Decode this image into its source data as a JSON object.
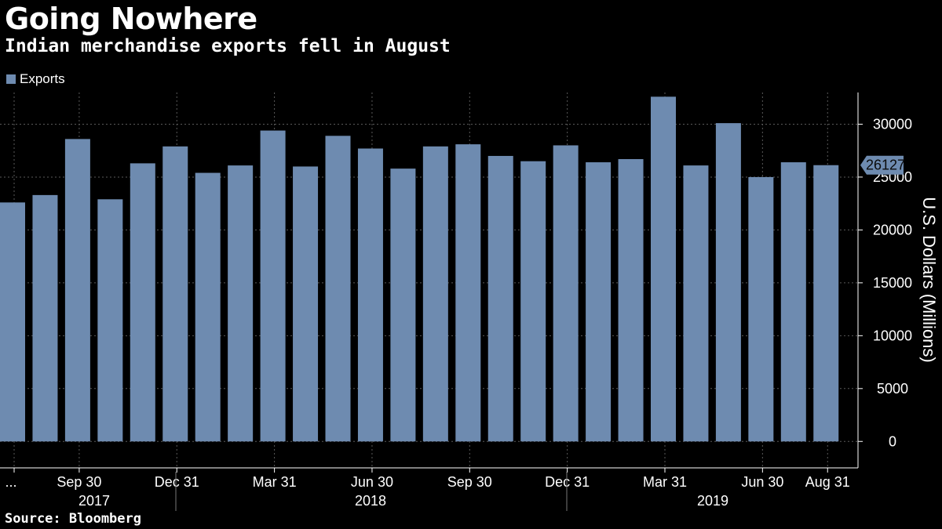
{
  "header": {
    "title": "Going Nowhere",
    "subtitle": "Indian merchandise exports fell in August"
  },
  "legend": {
    "label": "Exports",
    "color": "#6e8bb0"
  },
  "footer": {
    "source": "Source: Bloomberg"
  },
  "chart_data": {
    "type": "bar",
    "series": [
      {
        "name": "Exports",
        "color": "#6e8bb0",
        "values": [
          22600,
          23300,
          28600,
          22900,
          26300,
          27900,
          25400,
          26100,
          29400,
          26000,
          28900,
          27700,
          25800,
          27900,
          28100,
          27000,
          26500,
          28000,
          26400,
          26700,
          32600,
          26100,
          30100,
          25000,
          26400,
          26127
        ]
      }
    ],
    "ylabel": "U.S. Dollars (Millions)",
    "ylim": [
      -2500,
      33000
    ],
    "yticks": [
      0,
      5000,
      10000,
      15000,
      20000,
      25000,
      30000
    ],
    "last_value_label": "26127",
    "x_tick_labels": [
      "...",
      "Sep 30",
      "Dec 31",
      "Mar 31",
      "Jun 30",
      "Sep 30",
      "Dec 31",
      "Mar 31",
      "Jun 30",
      "Aug 31"
    ],
    "x_tick_bar_index": [
      0,
      2,
      5,
      8,
      11,
      14,
      17,
      20,
      23,
      25
    ],
    "year_labels": [
      "2017",
      "2018",
      "2019"
    ],
    "grid": true,
    "legend_position": "top-left",
    "axis_side": "right"
  }
}
